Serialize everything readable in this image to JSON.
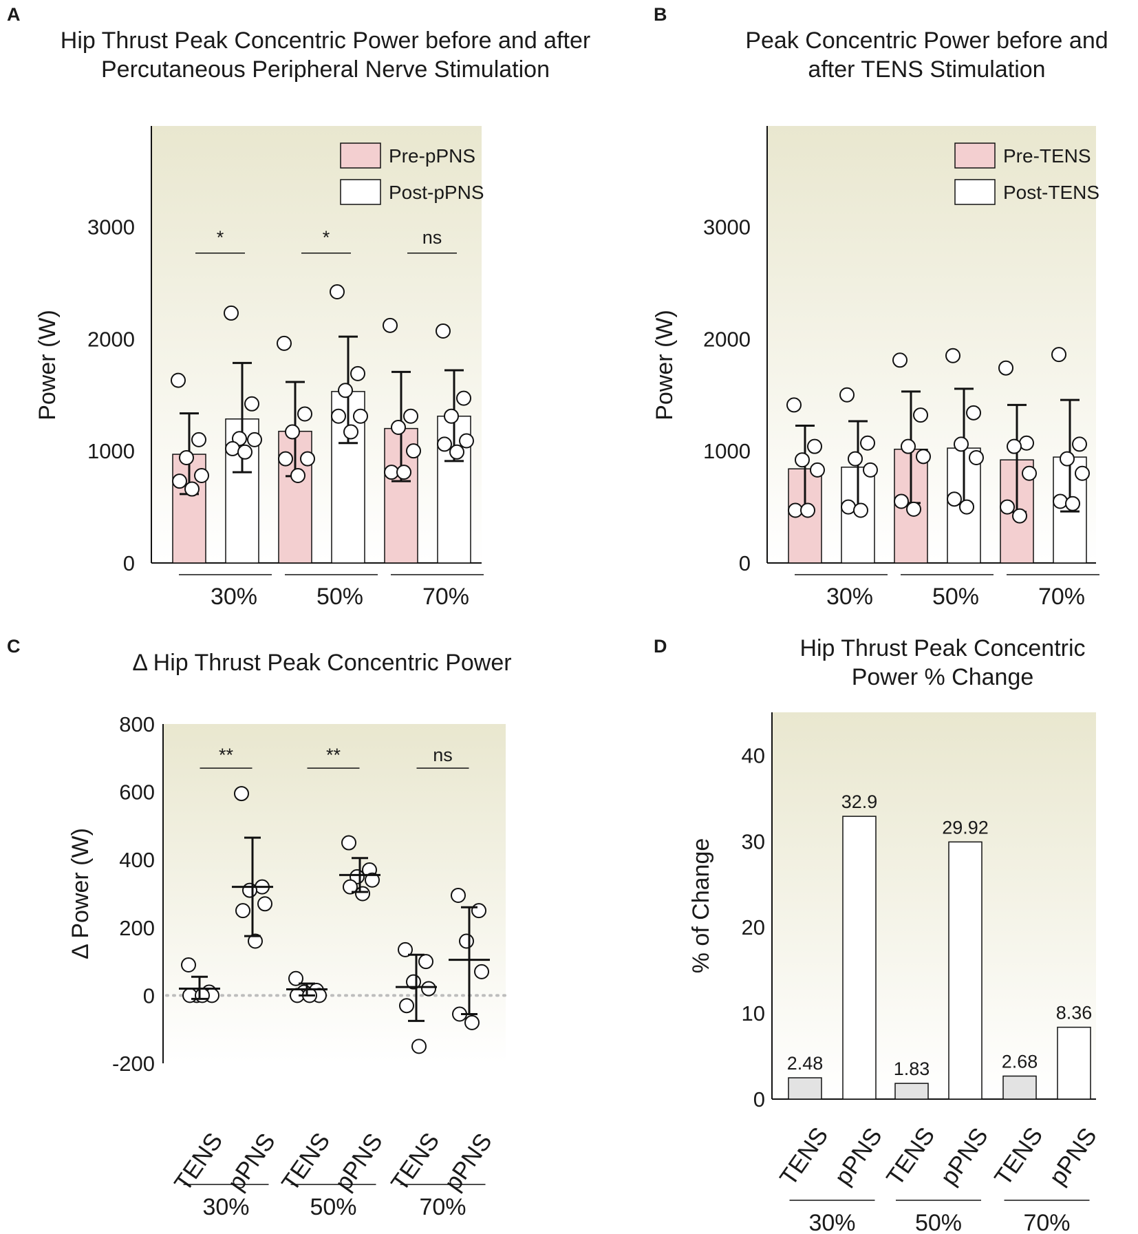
{
  "colors": {
    "pre": "#f3cfd0",
    "post": "#ffffff",
    "tens_bar": "#e3e3e3",
    "pps_bar": "#ffffff",
    "bg_top": "#ebe9d3",
    "bg_bottom": "#ffffff",
    "line": "#111111"
  },
  "chart_data": [
    {
      "panel": "A",
      "type": "bar",
      "title": [
        "Hip Thrust Peak Concentric Power before and after",
        "Percutaneous Peripheral Nerve Stimulation"
      ],
      "ylabel": "Power (W)",
      "ylim": [
        0,
        3900
      ],
      "yticks": [
        "0",
        "1000",
        "2000",
        "3000"
      ],
      "categories": [
        "30%",
        "50%",
        "70%"
      ],
      "legend": [
        "Pre-pPNS",
        "Post-pPNS"
      ],
      "significance": [
        "*",
        "*",
        "ns"
      ],
      "series": [
        {
          "name": "Pre-pPNS",
          "values": [
            970,
            1175,
            1200
          ],
          "error_low": [
            615,
            775,
            730
          ],
          "error_high": [
            1335,
            1615,
            1705
          ],
          "points": [
            [
              1630,
              1100,
              940,
              780,
              730,
              660
            ],
            [
              1960,
              1330,
              1170,
              930,
              930,
              780
            ],
            [
              2120,
              1310,
              1210,
              1000,
              810,
              810
            ]
          ]
        },
        {
          "name": "Post-pPNS",
          "values": [
            1285,
            1530,
            1310
          ],
          "error_low": [
            810,
            1070,
            910
          ],
          "error_high": [
            1785,
            2020,
            1720
          ],
          "points": [
            [
              2230,
              1420,
              1110,
              1100,
              1020,
              990
            ],
            [
              2420,
              1690,
              1540,
              1310,
              1310,
              1170
            ],
            [
              2070,
              1470,
              1310,
              1090,
              1060,
              990
            ]
          ]
        }
      ]
    },
    {
      "panel": "B",
      "type": "bar",
      "title": [
        "Peak Concentric Power before and",
        "after TENS Stimulation"
      ],
      "ylabel": "Power (W)",
      "ylim": [
        0,
        3900
      ],
      "yticks": [
        "0",
        "1000",
        "2000",
        "3000"
      ],
      "categories": [
        "30%",
        "50%",
        "70%"
      ],
      "legend": [
        "Pre-TENS",
        "Post-TENS"
      ],
      "series": [
        {
          "name": "Pre-TENS",
          "values": [
            840,
            1015,
            920
          ],
          "error_low": [
            470,
            535,
            455
          ],
          "error_high": [
            1225,
            1530,
            1410
          ],
          "points": [
            [
              1410,
              1040,
              920,
              830,
              470,
              470
            ],
            [
              1810,
              1320,
              1040,
              950,
              550,
              480
            ],
            [
              1740,
              1070,
              1040,
              800,
              500,
              420
            ]
          ]
        },
        {
          "name": "Post-TENS",
          "values": [
            855,
            1025,
            945
          ],
          "error_low": [
            470,
            525,
            460
          ],
          "error_high": [
            1265,
            1555,
            1455
          ],
          "points": [
            [
              1500,
              1070,
              930,
              830,
              500,
              470
            ],
            [
              1850,
              1340,
              1060,
              940,
              570,
              500
            ],
            [
              1860,
              1060,
              930,
              800,
              550,
              530
            ]
          ]
        }
      ]
    },
    {
      "panel": "C",
      "type": "scatter",
      "title": [
        "Δ Hip Thrust Peak Concentric Power"
      ],
      "ylabel": "Δ Power (W)",
      "ylim": [
        -200,
        800
      ],
      "yticks": [
        "-200",
        "0",
        "200",
        "400",
        "600",
        "800"
      ],
      "categories": [
        "TENS",
        "pPNS",
        "TENS",
        "pPNS",
        "TENS",
        "pPNS"
      ],
      "groups": [
        "30%",
        "50%",
        "70%"
      ],
      "significance": [
        "**",
        "**",
        "ns"
      ],
      "mean": [
        20,
        320,
        18,
        355,
        25,
        105
      ],
      "sd_low": [
        -10,
        175,
        0,
        305,
        -75,
        -55
      ],
      "sd_high": [
        55,
        465,
        35,
        405,
        120,
        260
      ],
      "points": [
        [
          90,
          10,
          0,
          0,
          0,
          0
        ],
        [
          595,
          320,
          310,
          270,
          250,
          160
        ],
        [
          50,
          15,
          10,
          0,
          0,
          0
        ],
        [
          450,
          370,
          350,
          340,
          320,
          300
        ],
        [
          135,
          100,
          40,
          20,
          -30,
          -150
        ],
        [
          295,
          250,
          160,
          70,
          -55,
          -80
        ]
      ]
    },
    {
      "panel": "D",
      "type": "bar",
      "title": [
        "Hip Thrust Peak Concentric",
        "Power % Change"
      ],
      "ylabel": "% of Change",
      "ylim": [
        0,
        45
      ],
      "yticks": [
        "0",
        "10",
        "20",
        "30",
        "40"
      ],
      "categories": [
        "TENS",
        "pPNS",
        "TENS",
        "pPNS",
        "TENS",
        "pPNS"
      ],
      "groups": [
        "30%",
        "50%",
        "70%"
      ],
      "values": [
        2.48,
        32.9,
        1.83,
        29.92,
        2.68,
        8.36
      ],
      "value_labels": [
        "2.48",
        "32.9",
        "1.83",
        "29.92",
        "2.68",
        "8.36"
      ]
    }
  ]
}
